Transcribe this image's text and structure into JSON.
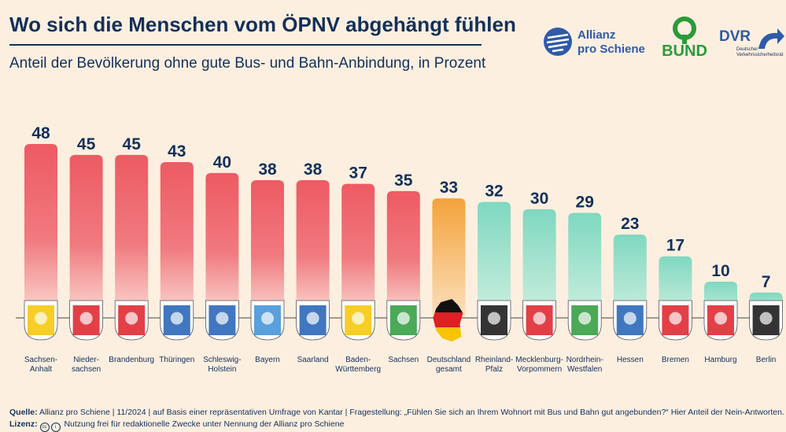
{
  "title": "Wo sich die Menschen vom ÖPNV abgehängt fühlen",
  "subtitle": "Anteil der Bevölkerung ohne gute Bus- und Bahn-Anbindung, in Prozent",
  "logos": {
    "allianz_line1": "Allianz",
    "allianz_line2": "pro Schiene",
    "bund": "BUND",
    "dvr": "DVR",
    "dvr_sub1": "Deutscher",
    "dvr_sub2": "Verkehrssicherheitsrat"
  },
  "colors": {
    "red": "#ee5a63",
    "orange": "#f3a23a",
    "green": "#7fd8c0",
    "navy": "#13305a"
  },
  "chart_data": {
    "type": "bar",
    "title": "Wo sich die Menschen vom ÖPNV abgehängt fühlen",
    "subtitle": "Anteil der Bevölkerung ohne gute Bus- und Bahn-Anbindung, in Prozent",
    "categories": [
      [
        "Sachsen-",
        "Anhalt"
      ],
      [
        "Nieder-",
        "sachsen"
      ],
      [
        "Brandenburg"
      ],
      [
        "Thüringen"
      ],
      [
        "Schleswig-",
        "Holstein"
      ],
      [
        "Bayern"
      ],
      [
        "Saarland"
      ],
      [
        "Baden-",
        "Württemberg"
      ],
      [
        "Sachsen"
      ],
      [
        "Deutschland",
        "gesamt"
      ],
      [
        "Rheinland-",
        "Pfalz"
      ],
      [
        "Mecklenburg-",
        "Vorpommern"
      ],
      [
        "Nordrhein-",
        "Westfalen"
      ],
      [
        "Hessen"
      ],
      [
        "Bremen"
      ],
      [
        "Hamburg"
      ],
      [
        "Berlin"
      ]
    ],
    "values": [
      48,
      45,
      45,
      43,
      40,
      38,
      38,
      37,
      35,
      33,
      32,
      30,
      29,
      23,
      17,
      10,
      7
    ],
    "bar_groups": [
      "red",
      "red",
      "red",
      "red",
      "red",
      "red",
      "red",
      "red",
      "red",
      "orange",
      "green",
      "green",
      "green",
      "green",
      "green",
      "green",
      "green"
    ],
    "icons": [
      "sachsen-anhalt-coat-of-arms-icon",
      "niedersachsen-coat-of-arms-icon",
      "brandenburg-coat-of-arms-icon",
      "thueringen-coat-of-arms-icon",
      "schleswig-holstein-coat-of-arms-icon",
      "bayern-coat-of-arms-icon",
      "saarland-coat-of-arms-icon",
      "baden-wuerttemberg-coat-of-arms-icon",
      "sachsen-coat-of-arms-icon",
      "germany-map-icon",
      "rheinland-pfalz-coat-of-arms-icon",
      "mecklenburg-vorpommern-coat-of-arms-icon",
      "nordrhein-westfalen-coat-of-arms-icon",
      "hessen-coat-of-arms-icon",
      "bremen-coat-of-arms-icon",
      "hamburg-coat-of-arms-icon",
      "berlin-coat-of-arms-icon"
    ],
    "ylim": [
      0,
      48
    ],
    "grid": false
  },
  "footer": {
    "source_label": "Quelle:",
    "source_text": "Allianz pro Schiene | 11/2024 | auf Basis einer repräsentativen Umfrage von Kantar | Fragestellung: „Fühlen Sie sich an Ihrem Wohnort mit Bus und Bahn gut angebunden?“ Hier Anteil der Nein-Antworten.",
    "license_label": "Lizenz:",
    "license_text": "Nutzung frei für redaktionelle Zwecke unter Nennung der Allianz pro Schiene"
  }
}
